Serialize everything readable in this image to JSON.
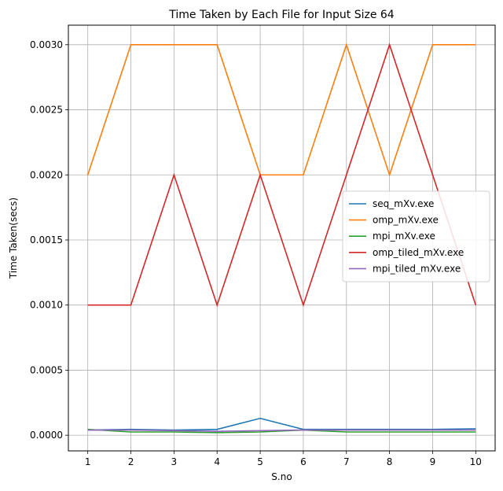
{
  "chart_data": {
    "type": "line",
    "title": "Time Taken by Each File for Input Size 64",
    "xlabel": "S.no",
    "ylabel": "Time Taken(secs)",
    "x": [
      1,
      2,
      3,
      4,
      5,
      6,
      7,
      8,
      9,
      10
    ],
    "xticks": [
      "1",
      "2",
      "3",
      "4",
      "5",
      "6",
      "7",
      "8",
      "9",
      "10"
    ],
    "yticks": [
      0.0,
      0.0005,
      0.001,
      0.0015,
      0.002,
      0.0025,
      0.003
    ],
    "ytick_labels": [
      "0.0000",
      "0.0005",
      "0.0010",
      "0.0015",
      "0.0020",
      "0.0025",
      "0.0030"
    ],
    "ylim": [
      -0.00012,
      0.00315
    ],
    "xlim": [
      0.55,
      10.45
    ],
    "grid": true,
    "legend_position": "center-right",
    "series": [
      {
        "name": "seq_mXv.exe",
        "color": "#1f77b4",
        "values": [
          4e-05,
          4.5e-05,
          4e-05,
          4.5e-05,
          0.00013,
          4.5e-05,
          4.5e-05,
          4.5e-05,
          4.5e-05,
          5e-05
        ]
      },
      {
        "name": "omp_mXv.exe",
        "color": "#ff7f0e",
        "values": [
          0.002,
          0.003,
          0.003,
          0.003,
          0.002,
          0.002,
          0.003,
          0.002,
          0.003,
          0.003
        ]
      },
      {
        "name": "mpi_mXv.exe",
        "color": "#2ca02c",
        "values": [
          4.5e-05,
          2.5e-05,
          2.5e-05,
          2e-05,
          2.5e-05,
          4e-05,
          2.5e-05,
          2.5e-05,
          2.5e-05,
          2.5e-05
        ]
      },
      {
        "name": "omp_tiled_mXv.exe",
        "color": "#d62728",
        "values": [
          0.001,
          0.001,
          0.002,
          0.001,
          0.002,
          0.001,
          0.002,
          0.003,
          0.002,
          0.001
        ]
      },
      {
        "name": "mpi_tiled_mXv.exe",
        "color": "#9467bd",
        "values": [
          4e-05,
          4e-05,
          3.5e-05,
          3e-05,
          3.5e-05,
          4e-05,
          4e-05,
          4e-05,
          4e-05,
          4e-05
        ]
      }
    ]
  }
}
